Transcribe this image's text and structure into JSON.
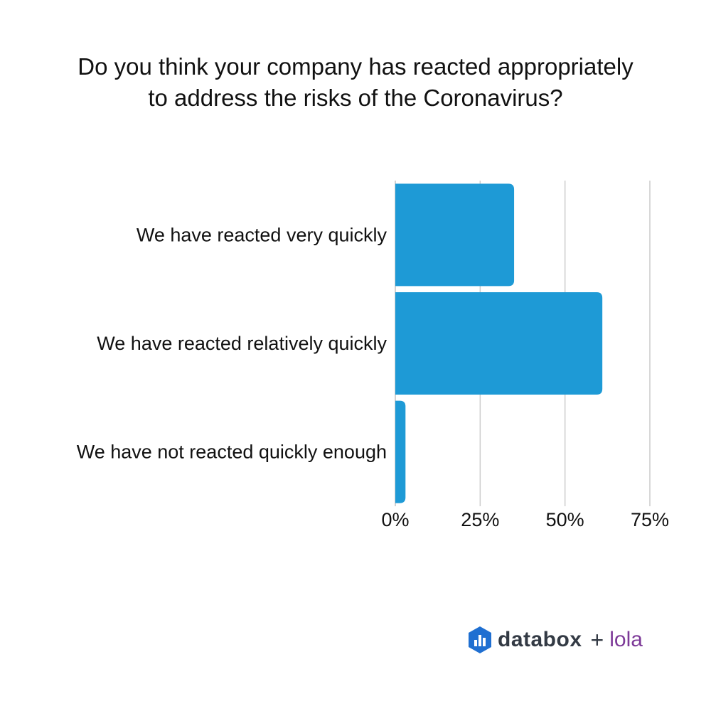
{
  "chart_data": {
    "type": "bar",
    "orientation": "horizontal",
    "title": "Do you think your company has reacted appropriately to address the risks of the Coronavirus?",
    "title_lines": [
      "Do you think your company has reacted appropriately",
      "to address the risks of the Coronavirus?"
    ],
    "categories": [
      "We have reacted very quickly",
      "We have reacted relatively quickly",
      "We have not reacted quickly enough"
    ],
    "values": [
      35,
      61,
      3
    ],
    "xlim": [
      0,
      75
    ],
    "xticks": [
      0,
      25,
      50,
      75
    ],
    "xtick_labels": [
      "0%",
      "25%",
      "50%",
      "75%"
    ],
    "xlabel": "",
    "ylabel": "",
    "grid": true,
    "bar_color": "#1e9ad6",
    "grid_color": "#cccccc"
  },
  "brand": {
    "logo_icon": "databox-logo-icon",
    "name": "databox",
    "plus": "+",
    "partner": "lola",
    "logo_color": "#1f6fd1",
    "partner_color": "#7d3a98"
  }
}
